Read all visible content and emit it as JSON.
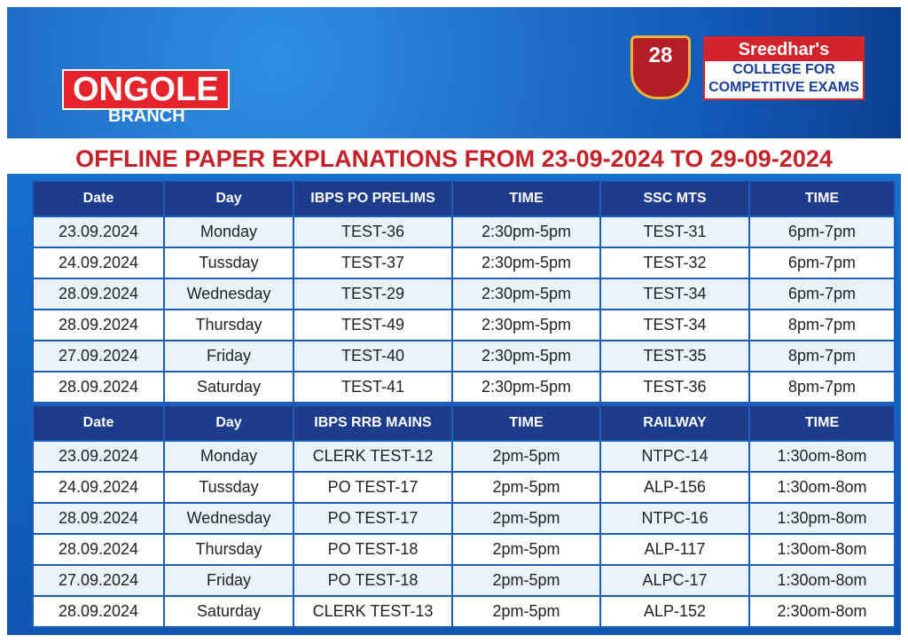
{
  "header": {
    "branch_name": "ONGOLE",
    "branch_label": "BRANCH",
    "badge_number": "28",
    "logo": {
      "name": "Sreedhar's",
      "line1": "COLLEGE FOR",
      "line2": "COMPETITIVE EXAMS"
    }
  },
  "title": "OFFLINE PAPER EXPLANATIONS FROM 23-09-2024 TO 29-09-2024",
  "tables": [
    {
      "columns": [
        "Date",
        "Day",
        "IBPS PO PRELIMS",
        "TIME",
        "SSC MTS",
        "TIME"
      ],
      "rows": [
        [
          "23.09.2024",
          "Monday",
          "TEST-36",
          "2:30pm-5pm",
          "TEST-31",
          "6pm-7pm"
        ],
        [
          "24.09.2024",
          "Tussday",
          "TEST-37",
          "2:30pm-5pm",
          "TEST-32",
          "6pm-7pm"
        ],
        [
          "28.09.2024",
          "Wednesday",
          "TEST-29",
          "2:30pm-5pm",
          "TEST-34",
          "6pm-7pm"
        ],
        [
          "28.09.2024",
          "Thursday",
          "TEST-49",
          "2:30pm-5pm",
          "TEST-34",
          "8pm-7pm"
        ],
        [
          "27.09.2024",
          "Friday",
          "TEST-40",
          "2:30pm-5pm",
          "TEST-35",
          "8pm-7pm"
        ],
        [
          "28.09.2024",
          "Saturday",
          "TEST-41",
          "2:30pm-5pm",
          "TEST-36",
          "8pm-7pm"
        ]
      ]
    },
    {
      "columns": [
        "Date",
        "Day",
        "IBPS RRB MAINS",
        "TIME",
        "RAILWAY",
        "TIME"
      ],
      "rows": [
        [
          "23.09.2024",
          "Monday",
          "CLERK TEST-12",
          "2pm-5pm",
          "NTPC-14",
          "1:30om-8om"
        ],
        [
          "24.09.2024",
          "Tussday",
          "PO TEST-17",
          "2pm-5pm",
          "ALP-156",
          "1:30om-8om"
        ],
        [
          "28.09.2024",
          "Wednesday",
          "PO TEST-17",
          "2pm-5pm",
          "NTPC-16",
          "1:30pm-8om"
        ],
        [
          "28.09.2024",
          "Thursday",
          "PO TEST-18",
          "2pm-5pm",
          "ALP-117",
          "1:30om-8om"
        ],
        [
          "27.09.2024",
          "Friday",
          "PO TEST-18",
          "2pm-5pm",
          "ALPC-17",
          "1:30om-8om"
        ],
        [
          "28.09.2024",
          "Saturday",
          "CLERK TEST-13",
          "2pm-5pm",
          "ALP-152",
          "2:30om-8om"
        ]
      ]
    }
  ]
}
